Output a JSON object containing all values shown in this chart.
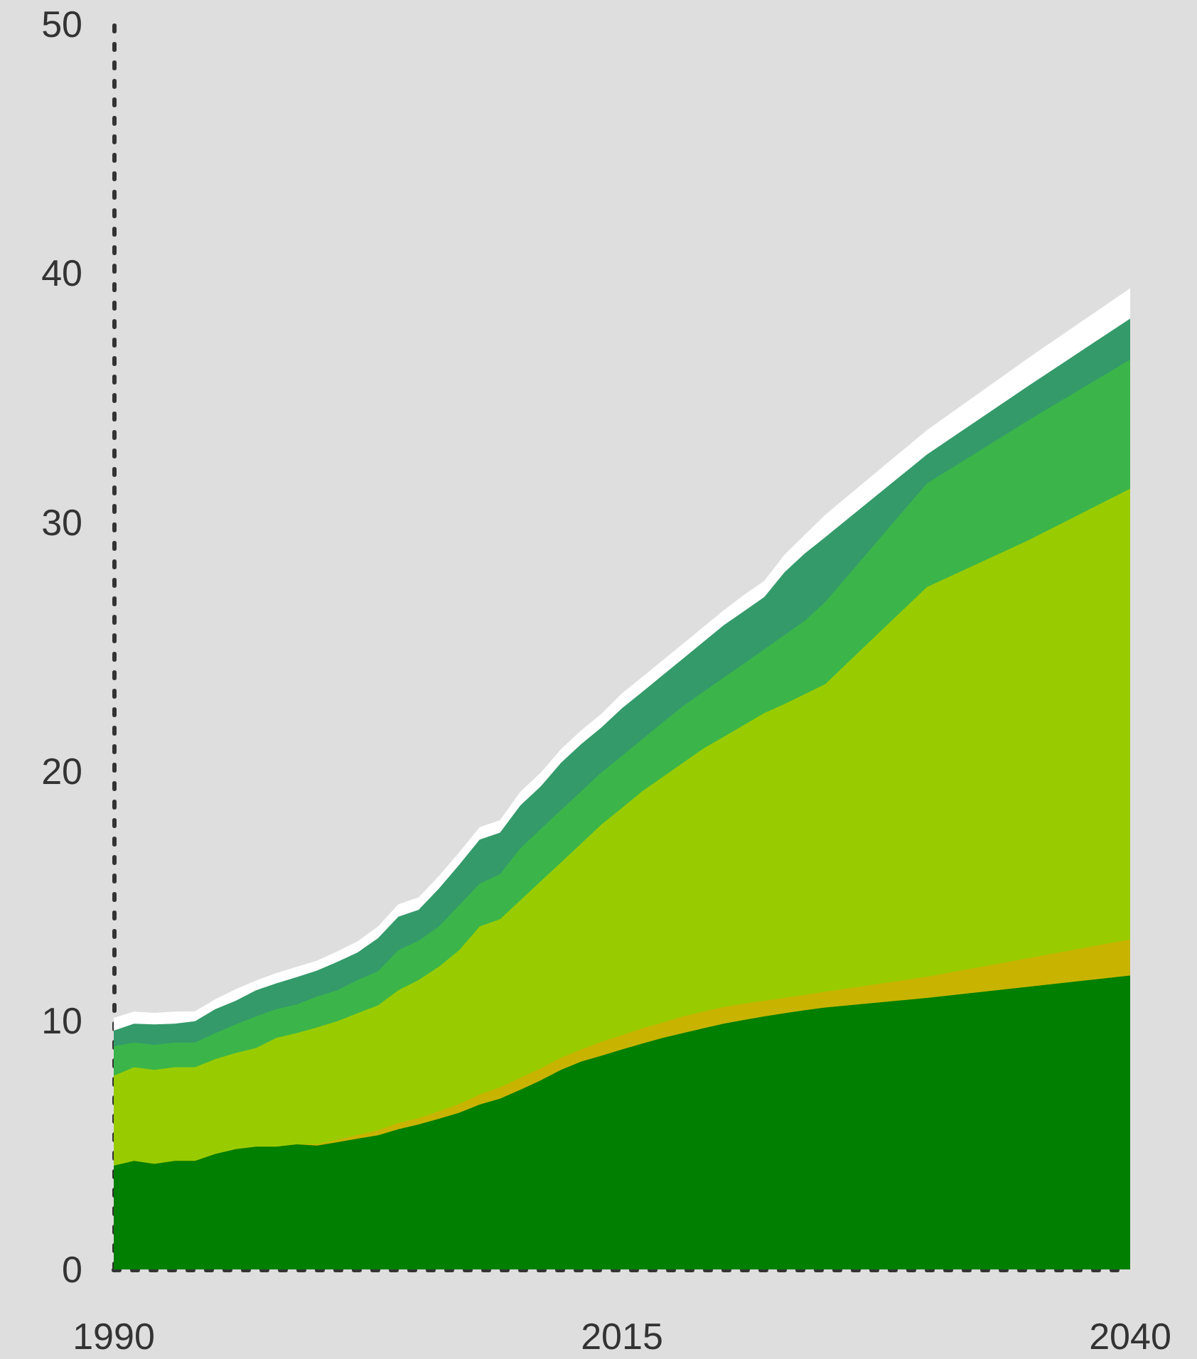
{
  "chart_data": {
    "type": "area",
    "stacked": true,
    "x": [
      1990,
      1991,
      1992,
      1993,
      1994,
      1995,
      1996,
      1997,
      1998,
      1999,
      2000,
      2001,
      2002,
      2003,
      2004,
      2005,
      2006,
      2007,
      2008,
      2009,
      2010,
      2011,
      2012,
      2013,
      2014,
      2015,
      2016,
      2017,
      2018,
      2019,
      2020,
      2021,
      2022,
      2023,
      2024,
      2025,
      2030,
      2035,
      2040
    ],
    "xlim": [
      1990,
      2040
    ],
    "xticks": [
      1990,
      2015,
      2040
    ],
    "ylim": [
      0,
      50
    ],
    "yticks": [
      0,
      10,
      20,
      30,
      40,
      50
    ],
    "series": [
      {
        "color": "#007f00",
        "values": [
          4.17,
          4.36,
          4.24,
          4.36,
          4.36,
          4.64,
          4.83,
          4.93,
          4.93,
          5.02,
          4.97,
          5.11,
          5.25,
          5.39,
          5.63,
          5.82,
          6.05,
          6.29,
          6.62,
          6.86,
          7.21,
          7.59,
          8.01,
          8.35,
          8.58,
          8.83,
          9.07,
          9.3,
          9.49,
          9.68,
          9.87,
          10.02,
          10.16,
          10.29,
          10.41,
          10.52,
          10.9,
          11.35,
          11.8
        ]
      },
      {
        "color": "#c8b400",
        "values": [
          0,
          0,
          0,
          0,
          0,
          0,
          0,
          0,
          0,
          0,
          0.05,
          0.1,
          0.15,
          0.2,
          0.25,
          0.25,
          0.3,
          0.35,
          0.4,
          0.45,
          0.48,
          0.48,
          0.49,
          0.48,
          0.57,
          0.57,
          0.61,
          0.61,
          0.67,
          0.67,
          0.67,
          0.65,
          0.63,
          0.61,
          0.61,
          0.63,
          0.85,
          1.15,
          1.45
        ]
      },
      {
        "color": "#99cc00",
        "values": [
          3.61,
          3.76,
          3.77,
          3.76,
          3.76,
          3.81,
          3.86,
          3.96,
          4.37,
          4.47,
          4.7,
          4.76,
          4.89,
          5.01,
          5.33,
          5.55,
          5.81,
          6.18,
          6.75,
          6.75,
          7.13,
          7.51,
          7.84,
          8.27,
          8.72,
          9.13,
          9.52,
          9.86,
          10.18,
          10.56,
          10.84,
          11.19,
          11.55,
          11.8,
          12.08,
          12.35,
          15.65,
          16.78,
          18.1
        ]
      },
      {
        "color": "#3bb54a",
        "values": [
          1.18,
          0.99,
          1.01,
          0.99,
          0.99,
          1.04,
          1.15,
          1.27,
          1.15,
          1.15,
          1.24,
          1.24,
          1.33,
          1.37,
          1.61,
          1.58,
          1.61,
          1.81,
          1.72,
          1.81,
          2.09,
          2.1,
          2.1,
          2.1,
          2.09,
          2.09,
          2.09,
          2.19,
          2.28,
          2.28,
          2.38,
          2.47,
          2.56,
          2.77,
          2.95,
          3.3,
          4.16,
          4.82,
          5.18
        ]
      },
      {
        "color": "#349a6a",
        "values": [
          0.63,
          0.76,
          0.82,
          0.76,
          0.86,
          0.96,
          0.95,
          1.05,
          1.04,
          1.1,
          1.04,
          1.14,
          1.11,
          1.33,
          1.34,
          1.24,
          1.53,
          1.62,
          1.77,
          1.67,
          1.72,
          1.71,
          1.9,
          1.9,
          1.81,
          1.91,
          1.9,
          1.9,
          1.9,
          2,
          2.1,
          2.1,
          2.1,
          2.53,
          2.7,
          2.6,
          1.16,
          1.38,
          1.65
        ]
      },
      {
        "color": "#ffffff",
        "values": [
          0.51,
          0.48,
          0.46,
          0.48,
          0.4,
          0.4,
          0.46,
          0.39,
          0.41,
          0.41,
          0.4,
          0.42,
          0.45,
          0.47,
          0.5,
          0.5,
          0.5,
          0.5,
          0.5,
          0.5,
          0.55,
          0.55,
          0.55,
          0.55,
          0.55,
          0.6,
          0.6,
          0.6,
          0.6,
          0.6,
          0.6,
          0.65,
          0.65,
          0.7,
          0.75,
          0.9,
          0.98,
          1.12,
          1.22
        ]
      }
    ]
  }
}
